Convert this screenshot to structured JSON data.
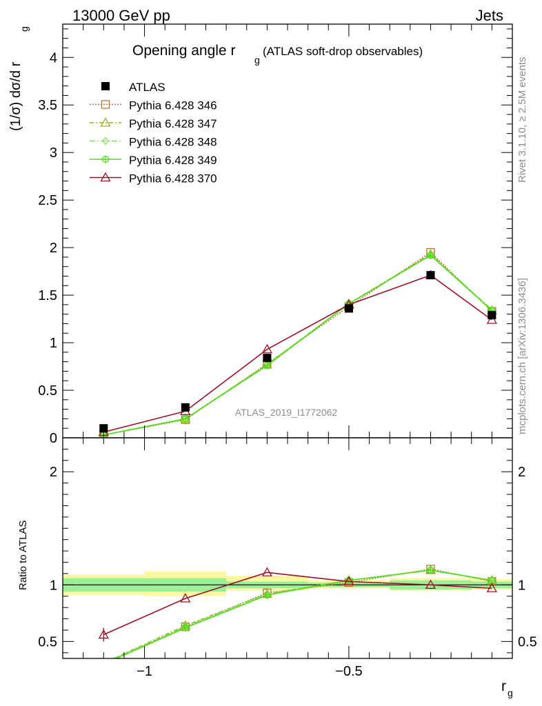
{
  "header": {
    "left": "13000 GeV pp",
    "right": "Jets"
  },
  "side": {
    "rivet": "Rivet 3.1.10, ≥ 2.5M events",
    "mcplots": "mcplots.cern.ch [arXiv:1306.3436]"
  },
  "chart_data": {
    "type": "line",
    "title": "Opening angle r",
    "title_sub": "g",
    "title_suffix": "(ATLAS soft-drop observables)",
    "ylabel": "(1/σ) dσ/d r",
    "ylabel_sub": "g",
    "xlabel": "r",
    "xlabel_sub": "g",
    "ratio_ylabel": "Ratio to ATLAS",
    "analysis_label": "ATLAS_2019_I1772062",
    "xlim": [
      -1.2,
      -0.1
    ],
    "ylim": [
      0,
      4.35
    ],
    "ratio_ylim": [
      0.35,
      2.3
    ],
    "x_ticks": [
      {
        "v": -1,
        "label": "−1"
      },
      {
        "v": -0.5,
        "label": "−0.5"
      }
    ],
    "y_ticks": [
      {
        "v": 0,
        "label": "0"
      },
      {
        "v": 0.5,
        "label": "0.5"
      },
      {
        "v": 1,
        "label": "1"
      },
      {
        "v": 1.5,
        "label": "1.5"
      },
      {
        "v": 2,
        "label": "2"
      },
      {
        "v": 2.5,
        "label": "2.5"
      },
      {
        "v": 3,
        "label": "3"
      },
      {
        "v": 3.5,
        "label": "3.5"
      },
      {
        "v": 4,
        "label": "4"
      }
    ],
    "ratio_ticks": [
      {
        "v": 0.5,
        "label": "0.5"
      },
      {
        "v": 1,
        "label": "1"
      },
      {
        "v": 2,
        "label": "2"
      }
    ],
    "x": [
      -1.1,
      -0.9,
      -0.7,
      -0.5,
      -0.3,
      -0.15
    ],
    "bin_edges": [
      -1.2,
      -1.0,
      -0.8,
      -0.6,
      -0.4,
      -0.2,
      -0.1
    ],
    "data": {
      "name": "ATLAS",
      "values": [
        0.1,
        0.32,
        0.84,
        1.36,
        1.71,
        1.29
      ],
      "stat_band": [
        [
          0.94,
          1.06
        ],
        [
          0.94,
          1.06
        ],
        [
          0.97,
          1.03
        ],
        [
          0.98,
          1.02
        ],
        [
          0.96,
          1.04
        ],
        [
          0.97,
          1.03
        ]
      ],
      "total_band": [
        [
          0.91,
          1.09
        ],
        [
          0.9,
          1.12
        ],
        [
          0.95,
          1.08
        ],
        [
          0.97,
          1.04
        ],
        [
          0.95,
          1.06
        ],
        [
          0.96,
          1.05
        ]
      ]
    },
    "series": [
      {
        "name": "Pythia 6.428 346",
        "color": "#b5752d",
        "dash": "2,2",
        "marker": "square-open",
        "values": [
          0.03,
          0.19,
          0.78,
          1.38,
          1.95,
          1.33
        ],
        "ratio": [
          0.3,
          0.63,
          0.93,
          1.02,
          1.14,
          1.03
        ]
      },
      {
        "name": "Pythia 6.428 347",
        "color": "#9ab11e",
        "dash": "6,3,2,3",
        "marker": "triangle-open",
        "values": [
          0.03,
          0.2,
          0.77,
          1.41,
          1.93,
          1.34
        ],
        "ratio": [
          0.31,
          0.64,
          0.92,
          1.04,
          1.13,
          1.04
        ]
      },
      {
        "name": "Pythia 6.428 348",
        "color": "#86e05a",
        "dash": "8,3,2,3",
        "marker": "diamond-open",
        "values": [
          0.03,
          0.2,
          0.77,
          1.41,
          1.92,
          1.35
        ],
        "ratio": [
          0.31,
          0.63,
          0.92,
          1.04,
          1.13,
          1.04
        ]
      },
      {
        "name": "Pythia 6.428 349",
        "color": "#4ddc1a",
        "dash": "",
        "marker": "circle-cross",
        "values": [
          0.03,
          0.2,
          0.76,
          1.41,
          1.92,
          1.34
        ],
        "ratio": [
          0.3,
          0.62,
          0.91,
          1.04,
          1.13,
          1.04
        ]
      },
      {
        "name": "Pythia 6.428 370",
        "color": "#9a1028",
        "dash": "",
        "marker": "triangle-open",
        "values": [
          0.06,
          0.28,
          0.93,
          1.4,
          1.71,
          1.24
        ],
        "ratio": [
          0.56,
          0.88,
          1.11,
          1.03,
          1.0,
          0.97
        ]
      }
    ]
  }
}
